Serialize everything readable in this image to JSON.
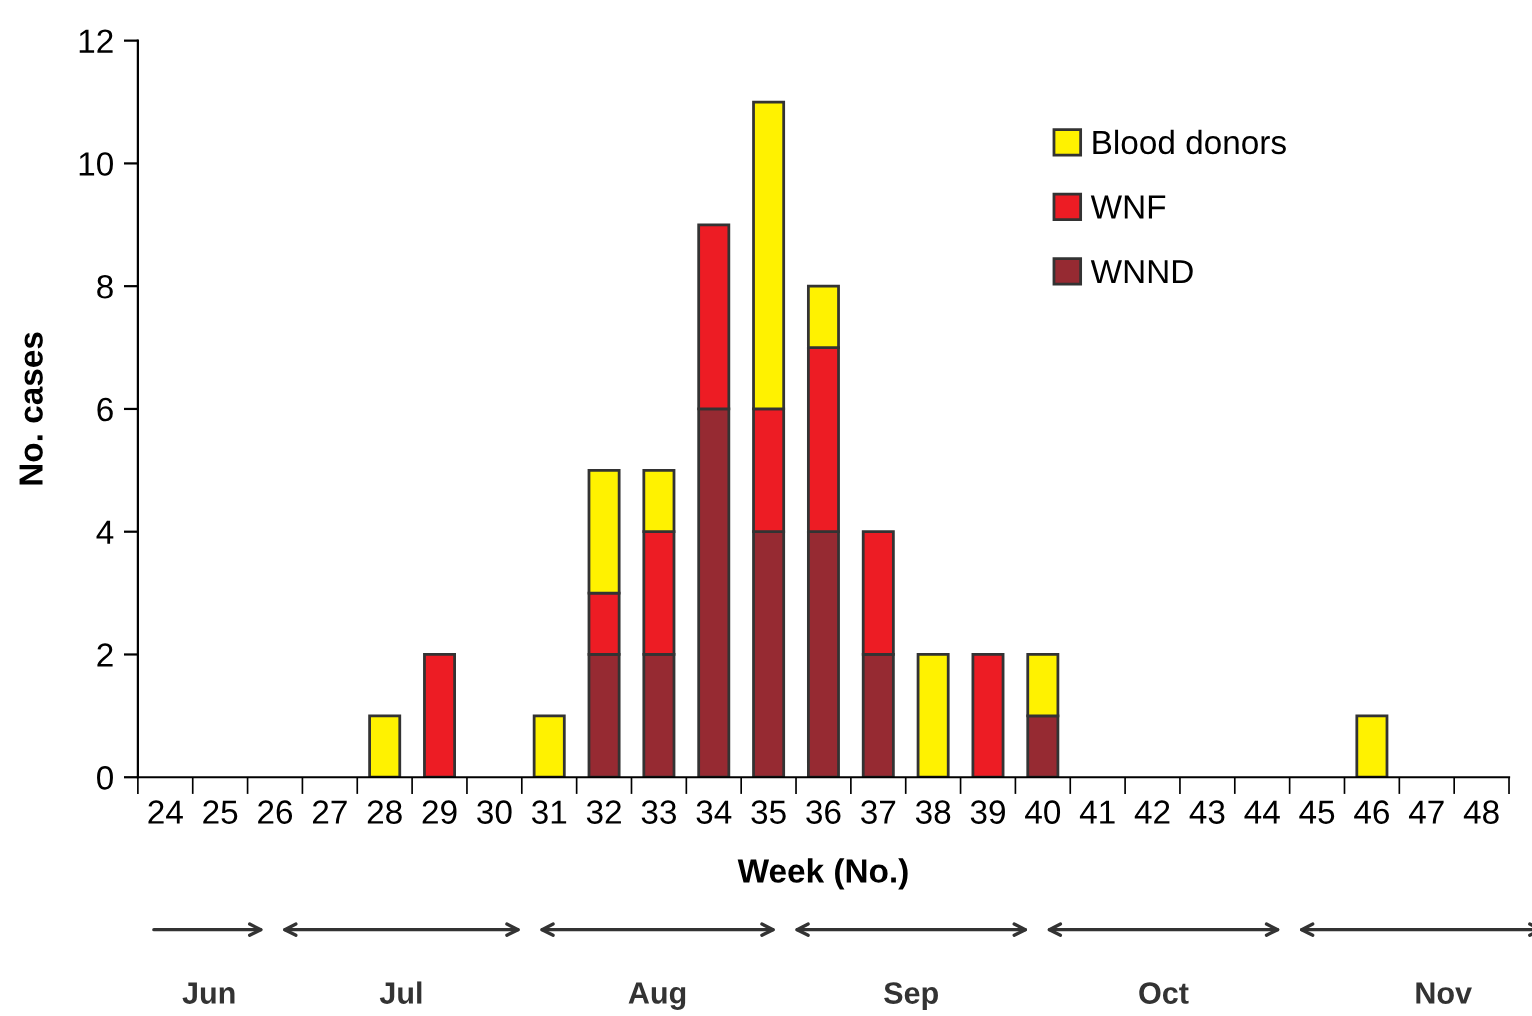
{
  "chart_data": {
    "type": "bar",
    "stacked": true,
    "xlabel": "Week (No.)",
    "ylabel": "No. cases",
    "categories": [
      "24",
      "25",
      "26",
      "27",
      "28",
      "29",
      "30",
      "31",
      "32",
      "33",
      "34",
      "35",
      "36",
      "37",
      "38",
      "39",
      "40",
      "41",
      "42",
      "43",
      "44",
      "45",
      "46",
      "47",
      "48"
    ],
    "series": [
      {
        "name": "WNND",
        "color": "#962a32",
        "values": [
          0,
          0,
          0,
          0,
          0,
          0,
          0,
          0,
          2,
          2,
          6,
          4,
          4,
          2,
          0,
          0,
          1,
          0,
          0,
          0,
          0,
          0,
          0,
          0,
          0
        ]
      },
      {
        "name": "WNF",
        "color": "#ed1c24",
        "values": [
          0,
          0,
          0,
          0,
          0,
          2,
          0,
          0,
          1,
          2,
          3,
          2,
          3,
          2,
          0,
          2,
          0,
          0,
          0,
          0,
          0,
          0,
          0,
          0,
          0
        ]
      },
      {
        "name": "Blood donors",
        "color": "#fff200",
        "values": [
          0,
          0,
          0,
          0,
          1,
          0,
          0,
          1,
          2,
          1,
          0,
          5,
          1,
          0,
          2,
          0,
          1,
          0,
          0,
          0,
          0,
          0,
          1,
          0,
          0
        ]
      }
    ],
    "ylim": [
      0,
      12
    ],
    "yticks": [
      0,
      2,
      4,
      6,
      8,
      10,
      12
    ],
    "grid": false,
    "legend": "top right",
    "annotations": [
      "Jun",
      "Jul",
      "Aug",
      "Sep",
      "Oct",
      "Nov"
    ]
  }
}
